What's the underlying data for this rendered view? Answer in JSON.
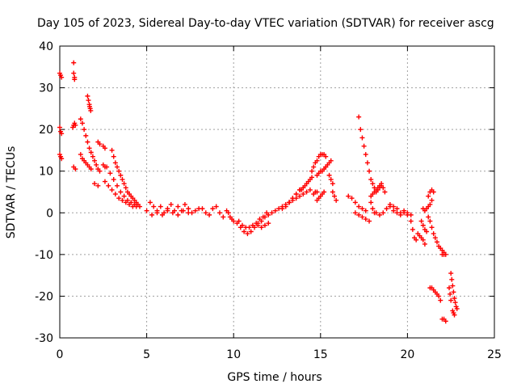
{
  "chart_data": {
    "type": "scatter",
    "title": "Day 105 of 2023, Sidereal Day-to-day VTEC variation (SDTVAR) for receiver ascg",
    "xlabel": "GPS time / hours",
    "ylabel": "SDTVAR / TECUs",
    "xlim": [
      0,
      25
    ],
    "ylim": [
      -30,
      40
    ],
    "xticks": [
      0,
      5,
      10,
      15,
      20,
      25
    ],
    "yticks": [
      -30,
      -20,
      -10,
      0,
      10,
      20,
      30,
      40
    ],
    "grid": true,
    "marker": "+",
    "color": "#ff0000",
    "series": [
      {
        "name": "s1",
        "x": [
          0.0,
          0.05,
          0.1
        ],
        "y": [
          33.5,
          33,
          32.5
        ]
      },
      {
        "name": "s2",
        "x": [
          0.0,
          0.05,
          0.1
        ],
        "y": [
          20.5,
          19.5,
          19
        ]
      },
      {
        "name": "s3",
        "x": [
          0.0,
          0.05,
          0.1
        ],
        "y": [
          14,
          13.5,
          13
        ]
      },
      {
        "name": "s4",
        "x": [
          0.8,
          0.8,
          0.85,
          0.85
        ],
        "y": [
          36,
          33.5,
          32.5,
          32
        ]
      },
      {
        "name": "s5",
        "x": [
          0.75,
          0.8,
          0.85,
          0.9
        ],
        "y": [
          20.5,
          21,
          21.5,
          21
        ]
      },
      {
        "name": "s6",
        "x": [
          0.8,
          0.9
        ],
        "y": [
          11,
          10.5
        ]
      },
      {
        "name": "s7",
        "x": [
          1.6,
          1.65,
          1.7,
          1.72,
          1.75,
          1.78
        ],
        "y": [
          28,
          27,
          26,
          25.5,
          25,
          24.5
        ]
      },
      {
        "name": "s8",
        "x": [
          1.2,
          1.3,
          1.4,
          1.5,
          1.6,
          1.7,
          1.8,
          1.9,
          2.0,
          2.1
        ],
        "y": [
          22.5,
          21.5,
          20,
          18.5,
          17,
          15.5,
          14.5,
          13.5,
          12.5,
          11.5
        ]
      },
      {
        "name": "s9",
        "x": [
          1.2,
          1.3,
          1.4,
          1.5,
          1.6,
          1.7,
          1.8
        ],
        "y": [
          14,
          13,
          12.5,
          12,
          11.5,
          11,
          10.5
        ]
      },
      {
        "name": "s10",
        "x": [
          2.2,
          2.3,
          2.5,
          2.6
        ],
        "y": [
          17,
          16.5,
          16,
          15.5
        ]
      },
      {
        "name": "s11",
        "x": [
          2.2,
          2.3
        ],
        "y": [
          10.5,
          10
        ]
      },
      {
        "name": "s12",
        "x": [
          2.5,
          2.6
        ],
        "y": [
          11.5,
          11
        ]
      },
      {
        "name": "s13",
        "x": [
          2.0,
          2.2
        ],
        "y": [
          7,
          6.5
        ]
      },
      {
        "name": "s14",
        "x": [
          3.0,
          3.1,
          3.2,
          3.3,
          3.4,
          3.5,
          3.6,
          3.7,
          3.8,
          3.9,
          4.0,
          4.1,
          4.2
        ],
        "y": [
          15,
          13.5,
          12,
          11,
          10,
          9,
          8,
          7,
          6,
          5,
          4.5,
          4,
          3.5
        ]
      },
      {
        "name": "s15",
        "x": [
          2.7,
          2.9,
          3.1,
          3.3,
          3.5,
          3.7,
          3.9,
          4.1,
          4.3
        ],
        "y": [
          11,
          9.5,
          8,
          6.5,
          5,
          4,
          3,
          2.5,
          2
        ]
      },
      {
        "name": "s16",
        "x": [
          2.6,
          2.8,
          3.0,
          3.2,
          3.4,
          3.6,
          3.8,
          4.0,
          4.2,
          4.4
        ],
        "y": [
          7.5,
          6.5,
          5.5,
          4.5,
          3.5,
          3,
          2.5,
          2,
          1.5,
          1.5
        ]
      },
      {
        "name": "s17",
        "x": [
          4.3,
          4.4,
          4.5,
          4.6
        ],
        "y": [
          3,
          2.5,
          2,
          1.5
        ]
      },
      {
        "name": "s18",
        "x": [
          5.2,
          5.4,
          5.6,
          5.8,
          6.0,
          6.2,
          6.4,
          6.6,
          6.8,
          7.0,
          7.2,
          7.4,
          7.6,
          7.8,
          8.0
        ],
        "y": [
          2.5,
          1.5,
          0.5,
          1.5,
          0,
          1,
          2,
          0.5,
          1.5,
          0.5,
          2,
          1,
          0,
          0.5,
          1
        ]
      },
      {
        "name": "s19",
        "x": [
          5.0,
          5.3,
          5.6,
          5.9,
          6.2,
          6.5,
          6.8,
          7.1,
          7.4
        ],
        "y": [
          0.5,
          -0.5,
          0,
          -0.5,
          0.5,
          0,
          -0.5,
          0.5,
          0
        ]
      },
      {
        "name": "s20",
        "x": [
          8.2,
          8.4,
          8.6,
          8.8,
          9.0,
          9.2,
          9.4
        ],
        "y": [
          1,
          0,
          -0.5,
          1,
          1.5,
          0,
          -1
        ]
      },
      {
        "name": "s21",
        "x": [
          9.6,
          9.7,
          9.8,
          9.9,
          10.0
        ],
        "y": [
          0.5,
          0,
          -1,
          -1.5,
          -2
        ]
      },
      {
        "name": "s22",
        "x": [
          10.2,
          10.4,
          10.6,
          10.8,
          11.0,
          11.2,
          11.4,
          11.6,
          11.8,
          12.0
        ],
        "y": [
          -2.5,
          -3.5,
          -4.5,
          -5,
          -4.5,
          -3.5,
          -2.5,
          -2,
          -1,
          -0.5
        ]
      },
      {
        "name": "s23",
        "x": [
          10.3,
          10.5,
          10.7,
          10.9,
          11.1,
          11.3,
          11.5,
          11.7,
          11.9
        ],
        "y": [
          -2,
          -3,
          -3.5,
          -3.5,
          -3,
          -2.5,
          -1.5,
          -1,
          0
        ]
      },
      {
        "name": "s24",
        "x": [
          11.4,
          11.6,
          11.8,
          12.0
        ],
        "y": [
          -3,
          -3.5,
          -3,
          -2.5
        ]
      },
      {
        "name": "s25",
        "x": [
          12.2,
          12.4,
          12.6,
          12.8,
          13.0,
          13.2,
          13.4,
          13.6,
          13.8,
          14.0,
          14.2,
          14.4
        ],
        "y": [
          0,
          0.5,
          1,
          1.5,
          2,
          2.5,
          3,
          3.5,
          4,
          4.5,
          5,
          5.5
        ]
      },
      {
        "name": "s26",
        "x": [
          12.8,
          13.0,
          13.2,
          13.4,
          13.6,
          13.8,
          14.0
        ],
        "y": [
          1,
          1.5,
          2.5,
          3.5,
          4.5,
          5.5,
          6
        ]
      },
      {
        "name": "s27",
        "x": [
          13.2,
          13.4,
          13.6,
          13.8
        ],
        "y": [
          2.5,
          3.5,
          4.5,
          5.5
        ]
      },
      {
        "name": "s28",
        "x": [
          13.9,
          14.0,
          14.1,
          14.2,
          14.3,
          14.4,
          14.5
        ],
        "y": [
          5.5,
          6,
          6.5,
          7,
          7.5,
          8,
          8.5
        ]
      },
      {
        "name": "s29",
        "x": [
          14.5,
          14.6,
          14.7,
          14.8,
          14.9,
          15.0,
          15.1,
          15.2,
          15.3
        ],
        "y": [
          10,
          11,
          12,
          12.5,
          13.5,
          14,
          14,
          14,
          13.5
        ]
      },
      {
        "name": "s30",
        "x": [
          14.8,
          14.9,
          15.0,
          15.1,
          15.2,
          15.3
        ],
        "y": [
          9,
          9.5,
          10,
          10,
          10.5,
          11
        ]
      },
      {
        "name": "s31",
        "x": [
          15.3,
          15.4,
          15.5,
          15.6
        ],
        "y": [
          11,
          11.5,
          12,
          12.5
        ]
      },
      {
        "name": "s32",
        "x": [
          15.5,
          15.6,
          15.7
        ],
        "y": [
          9,
          8,
          7
        ]
      },
      {
        "name": "s33",
        "x": [
          14.6,
          14.7,
          14.8
        ],
        "y": [
          4.5,
          5,
          5
        ]
      },
      {
        "name": "s34",
        "x": [
          14.8,
          14.9,
          15.0,
          15.1,
          15.2
        ],
        "y": [
          3,
          3.5,
          4,
          4.5,
          5
        ]
      },
      {
        "name": "s35",
        "x": [
          15.8,
          15.9
        ],
        "y": [
          4,
          3
        ]
      },
      {
        "name": "s36",
        "x": [
          15.7
        ],
        "y": [
          5
        ]
      },
      {
        "name": "s37",
        "x": [
          17.2,
          17.3,
          17.4,
          17.5,
          17.6,
          17.7,
          17.8,
          17.9,
          18.0,
          18.1
        ],
        "y": [
          23,
          20,
          18,
          16,
          14,
          12,
          10,
          8,
          7,
          6
        ]
      },
      {
        "name": "s38",
        "x": [
          18.2,
          18.3,
          18.4,
          18.5,
          18.6,
          18.7
        ],
        "y": [
          5,
          5.5,
          6,
          6.5,
          6,
          5
        ]
      },
      {
        "name": "s39",
        "x": [
          17.9,
          18.0,
          18.1,
          18.2,
          18.3,
          18.4,
          18.5
        ],
        "y": [
          4,
          4.5,
          5,
          5.5,
          6,
          6.5,
          7
        ]
      },
      {
        "name": "s40",
        "x": [
          16.6,
          16.8,
          17.0,
          17.2,
          17.4,
          17.6
        ],
        "y": [
          4,
          3.5,
          2.5,
          1.5,
          1,
          0.5
        ]
      },
      {
        "name": "s41",
        "x": [
          17.0,
          17.2,
          17.4,
          17.6,
          17.8
        ],
        "y": [
          0,
          -0.5,
          -1,
          -1.5,
          -2
        ]
      },
      {
        "name": "s42",
        "x": [
          17.9,
          18.0,
          18.1
        ],
        "y": [
          2.5,
          1,
          0
        ]
      },
      {
        "name": "s43",
        "x": [
          18.2,
          18.4,
          18.6,
          18.8,
          19.0,
          19.2,
          19.4,
          19.6,
          19.8,
          20.0,
          20.2
        ],
        "y": [
          0,
          -0.5,
          0,
          1,
          1.5,
          0.5,
          0,
          -0.5,
          0,
          0,
          -0.5
        ]
      },
      {
        "name": "s44",
        "x": [
          19.0,
          19.2,
          19.4,
          19.6,
          19.8,
          20.0
        ],
        "y": [
          2,
          1.5,
          1,
          0,
          0.5,
          -0.5
        ]
      },
      {
        "name": "s45",
        "x": [
          20.2,
          20.3,
          20.4,
          20.5
        ],
        "y": [
          -2,
          -4,
          -6,
          -6.5
        ]
      },
      {
        "name": "s46",
        "x": [
          20.6,
          20.7,
          20.8,
          20.9,
          21.0
        ],
        "y": [
          -5,
          -5.5,
          -6,
          -6.5,
          -7.5
        ]
      },
      {
        "name": "s47",
        "x": [
          20.8,
          20.9,
          21.0,
          21.1
        ],
        "y": [
          -2,
          -3,
          -4,
          -4.5
        ]
      },
      {
        "name": "s48",
        "x": [
          20.9,
          21.0,
          21.1,
          21.2,
          21.3,
          21.4,
          21.5
        ],
        "y": [
          1,
          0.5,
          1,
          1.5,
          2,
          3,
          5
        ]
      },
      {
        "name": "s49",
        "x": [
          21.2,
          21.3,
          21.4,
          21.5,
          21.6,
          21.7,
          21.8,
          21.9,
          22.0,
          22.1
        ],
        "y": [
          -1,
          -2,
          -3.5,
          -5,
          -6,
          -7,
          -8,
          -8.5,
          -9,
          -9.5
        ]
      },
      {
        "name": "s50",
        "x": [
          21.2,
          21.3,
          21.4
        ],
        "y": [
          4,
          5,
          5.5
        ]
      },
      {
        "name": "s51",
        "x": [
          22.0,
          22.1,
          22.2
        ],
        "y": [
          -10,
          -10,
          -10
        ]
      },
      {
        "name": "s52",
        "x": [
          21.3,
          21.4,
          21.5,
          21.6,
          21.7,
          21.8,
          21.9
        ],
        "y": [
          -18,
          -18,
          -18.5,
          -19,
          -19.5,
          -20,
          -21
        ]
      },
      {
        "name": "s53",
        "x": [
          22.0,
          22.1,
          22.2
        ],
        "y": [
          -25.5,
          -25.5,
          -26
        ]
      },
      {
        "name": "s54",
        "x": [
          22.5,
          22.55,
          22.6,
          22.65,
          22.7,
          22.75,
          22.8,
          22.85
        ],
        "y": [
          -14.5,
          -16,
          -17.5,
          -19,
          -20.5,
          -21.5,
          -22.5,
          -23
        ]
      },
      {
        "name": "s55",
        "x": [
          22.6,
          22.65,
          22.7
        ],
        "y": [
          -23.5,
          -24,
          -24.5
        ]
      },
      {
        "name": "s56",
        "x": [
          22.4,
          22.45,
          22.5
        ],
        "y": [
          -18,
          -19.5,
          -21
        ]
      }
    ]
  }
}
